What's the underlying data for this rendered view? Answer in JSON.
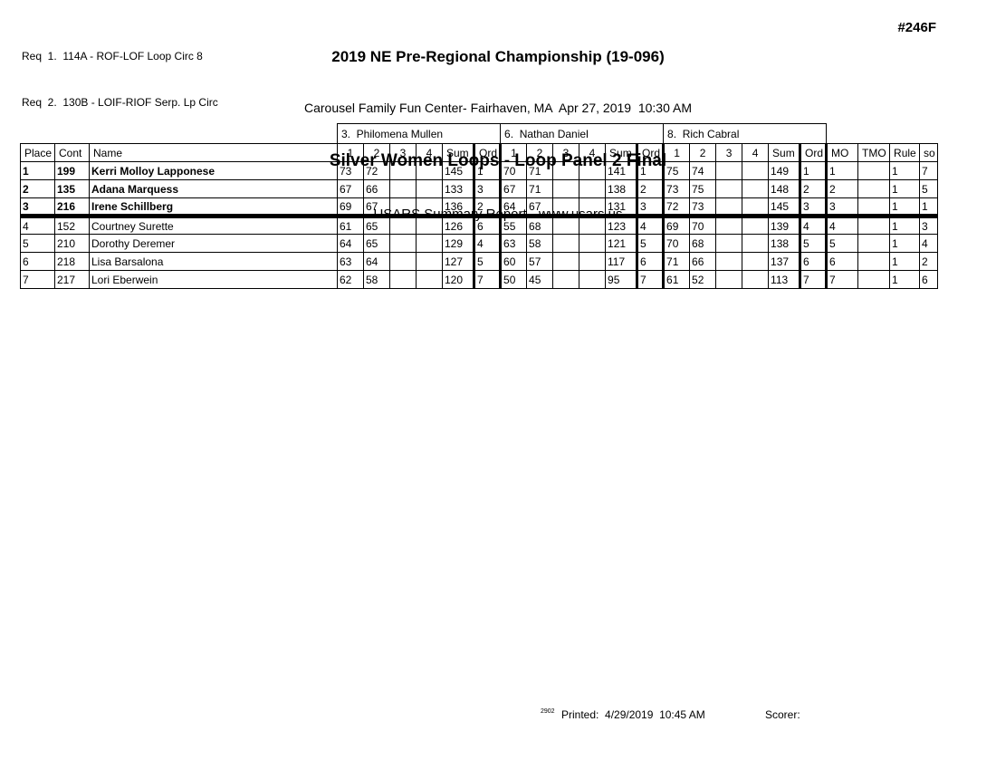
{
  "header": {
    "req1": "Req  1.  114A - ROF-LOF Loop Circ 8",
    "req2": "Req  2.  130B - LOIF-RIOF Serp. Lp Circ",
    "title": "2019 NE Pre-Regional Championship (19-096)",
    "venue_datetime": "Carousel Family Fun Center- Fairhaven, MA  Apr 27, 2019  10:30 AM",
    "event": "Silver Women Loops - Loop Panel 2 Final",
    "report_name": "USARS Summary Report - www.usars.us",
    "heat_number": "#246F"
  },
  "table": {
    "judges": [
      "3.  Philomena Mullen",
      "6.  Nathan Daniel",
      "8.  Rich Cabral"
    ],
    "columns": {
      "place": "Place",
      "cont": "Cont",
      "name": "Name",
      "score_cols": [
        "1",
        "2",
        "3",
        "4"
      ],
      "sum": "Sum",
      "ord": "Ord",
      "mo": "MO",
      "tmo": "TMO",
      "rule": "Rule",
      "so": "so"
    },
    "rows": [
      {
        "place": "1",
        "cont": "199",
        "name": "Kerri Molloy Lapponese",
        "emphasis": true,
        "judges": [
          {
            "s1": "73",
            "s2": "72",
            "s3": "",
            "s4": "",
            "sum": "145",
            "ord": "1"
          },
          {
            "s1": "70",
            "s2": "71",
            "s3": "",
            "s4": "",
            "sum": "141",
            "ord": "1"
          },
          {
            "s1": "75",
            "s2": "74",
            "s3": "",
            "s4": "",
            "sum": "149",
            "ord": "1"
          }
        ],
        "mo": "1",
        "tmo": "",
        "rule": "1",
        "so": "7"
      },
      {
        "place": "2",
        "cont": "135",
        "name": "Adana Marquess",
        "emphasis": true,
        "judges": [
          {
            "s1": "67",
            "s2": "66",
            "s3": "",
            "s4": "",
            "sum": "133",
            "ord": "3"
          },
          {
            "s1": "67",
            "s2": "71",
            "s3": "",
            "s4": "",
            "sum": "138",
            "ord": "2"
          },
          {
            "s1": "73",
            "s2": "75",
            "s3": "",
            "s4": "",
            "sum": "148",
            "ord": "2"
          }
        ],
        "mo": "2",
        "tmo": "",
        "rule": "1",
        "so": "5"
      },
      {
        "place": "3",
        "cont": "216",
        "name": "Irene Schillberg",
        "emphasis": true,
        "judges": [
          {
            "s1": "69",
            "s2": "67",
            "s3": "",
            "s4": "",
            "sum": "136",
            "ord": "2"
          },
          {
            "s1": "64",
            "s2": "67",
            "s3": "",
            "s4": "",
            "sum": "131",
            "ord": "3"
          },
          {
            "s1": "72",
            "s2": "73",
            "s3": "",
            "s4": "",
            "sum": "145",
            "ord": "3"
          }
        ],
        "mo": "3",
        "tmo": "",
        "rule": "1",
        "so": "1"
      },
      {
        "place": "4",
        "cont": "152",
        "name": "Courtney Surette",
        "emphasis": false,
        "judges": [
          {
            "s1": "61",
            "s2": "65",
            "s3": "",
            "s4": "",
            "sum": "126",
            "ord": "6"
          },
          {
            "s1": "55",
            "s2": "68",
            "s3": "",
            "s4": "",
            "sum": "123",
            "ord": "4"
          },
          {
            "s1": "69",
            "s2": "70",
            "s3": "",
            "s4": "",
            "sum": "139",
            "ord": "4"
          }
        ],
        "mo": "4",
        "tmo": "",
        "rule": "1",
        "so": "3"
      },
      {
        "place": "5",
        "cont": "210",
        "name": "Dorothy Deremer",
        "emphasis": false,
        "judges": [
          {
            "s1": "64",
            "s2": "65",
            "s3": "",
            "s4": "",
            "sum": "129",
            "ord": "4"
          },
          {
            "s1": "63",
            "s2": "58",
            "s3": "",
            "s4": "",
            "sum": "121",
            "ord": "5"
          },
          {
            "s1": "70",
            "s2": "68",
            "s3": "",
            "s4": "",
            "sum": "138",
            "ord": "5"
          }
        ],
        "mo": "5",
        "tmo": "",
        "rule": "1",
        "so": "4"
      },
      {
        "place": "6",
        "cont": "218",
        "name": "Lisa Barsalona",
        "emphasis": false,
        "judges": [
          {
            "s1": "63",
            "s2": "64",
            "s3": "",
            "s4": "",
            "sum": "127",
            "ord": "5"
          },
          {
            "s1": "60",
            "s2": "57",
            "s3": "",
            "s4": "",
            "sum": "117",
            "ord": "6"
          },
          {
            "s1": "71",
            "s2": "66",
            "s3": "",
            "s4": "",
            "sum": "137",
            "ord": "6"
          }
        ],
        "mo": "6",
        "tmo": "",
        "rule": "1",
        "so": "2"
      },
      {
        "place": "7",
        "cont": "217",
        "name": "Lori Eberwein",
        "emphasis": false,
        "judges": [
          {
            "s1": "62",
            "s2": "58",
            "s3": "",
            "s4": "",
            "sum": "120",
            "ord": "7"
          },
          {
            "s1": "50",
            "s2": "45",
            "s3": "",
            "s4": "",
            "sum": "95",
            "ord": "7"
          },
          {
            "s1": "61",
            "s2": "52",
            "s3": "",
            "s4": "",
            "sum": "113",
            "ord": "7"
          }
        ],
        "mo": "7",
        "tmo": "",
        "rule": "1",
        "so": "6"
      }
    ]
  },
  "footer": {
    "version": "2902",
    "printed": "Printed:  4/29/2019  10:45 AM",
    "scorer_label": "Scorer:"
  }
}
